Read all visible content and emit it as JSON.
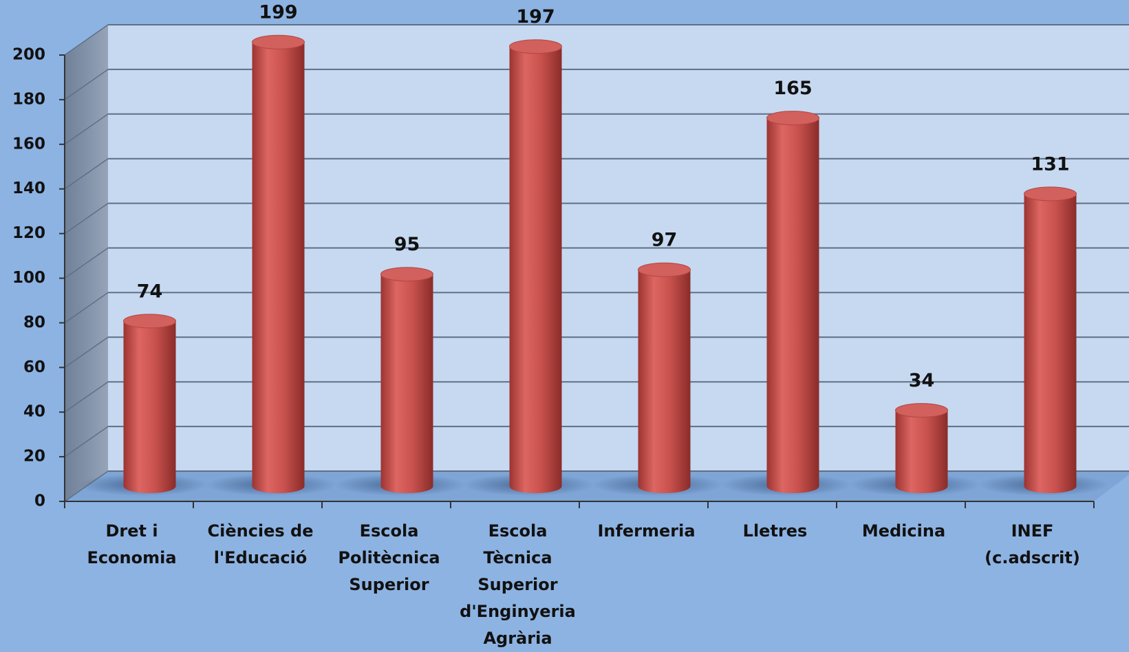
{
  "chart_data": {
    "type": "bar",
    "categories": [
      "Dret i Economia",
      "Ciències de l'Educació",
      "Escola Politècnica Superior",
      "Escola Tècnica Superior d'Enginyeria Agrària",
      "Infermeria",
      "Lletres",
      "Medicina",
      "INEF (c.adscrit)"
    ],
    "values": [
      74,
      199,
      95,
      197,
      97,
      165,
      34,
      131
    ],
    "color": "#c0504d",
    "ylim": [
      0,
      200
    ],
    "yticks": [
      0,
      20,
      40,
      60,
      80,
      100,
      120,
      140,
      160,
      180,
      200
    ],
    "grid": true
  }
}
